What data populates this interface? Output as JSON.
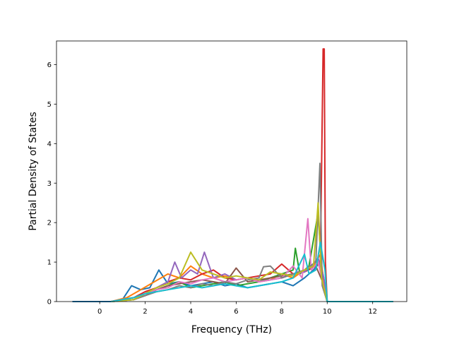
{
  "chart_data": {
    "type": "line",
    "title": "",
    "xlabel": "Frequency (THz)",
    "ylabel": "Partial Density of States",
    "xlim": [
      -1.9,
      13.5
    ],
    "ylim": [
      0,
      6.6
    ],
    "x_ticks": [
      0,
      2,
      4,
      6,
      8,
      10,
      12
    ],
    "x_tick_labels": [
      "0",
      "2",
      "4",
      "6",
      "8",
      "10",
      "12"
    ],
    "y_ticks": [
      0,
      1,
      2,
      3,
      4,
      5,
      6
    ],
    "y_tick_labels": [
      "0",
      "1",
      "2",
      "3",
      "4",
      "5",
      "6"
    ],
    "grid": false,
    "legend": "none",
    "colors": [
      "#1f77b4",
      "#ff7f0e",
      "#2ca02c",
      "#d62728",
      "#9467bd",
      "#8c564b",
      "#e377c2",
      "#7f7f7f",
      "#bcbd22",
      "#17becf"
    ],
    "series": [
      {
        "color": "#1f77b4",
        "x": [
          -1.2,
          0.5,
          1.0,
          1.4,
          1.8,
          2.2,
          2.6,
          3.0,
          3.5,
          4.0,
          4.5,
          5.0,
          5.5,
          6.0,
          6.5,
          7.0,
          7.5,
          8.0,
          8.5,
          9.0,
          9.4,
          9.7,
          9.85,
          10.0,
          12.9
        ],
        "y": [
          0,
          0,
          0.05,
          0.4,
          0.3,
          0.35,
          0.8,
          0.45,
          0.5,
          0.4,
          0.45,
          0.5,
          0.4,
          0.45,
          0.35,
          0.4,
          0.45,
          0.5,
          0.4,
          0.6,
          0.8,
          1.0,
          0.6,
          0,
          0
        ]
      },
      {
        "color": "#ff7f0e",
        "x": [
          0.5,
          1.2,
          1.8,
          2.4,
          3.0,
          3.5,
          4.0,
          4.5,
          5.0,
          5.5,
          6.0,
          6.5,
          7.0,
          7.5,
          8.0,
          8.5,
          9.0,
          9.4,
          9.7,
          9.85,
          10.0
        ],
        "y": [
          0,
          0.1,
          0.3,
          0.5,
          0.7,
          0.6,
          0.9,
          0.7,
          0.6,
          0.65,
          0.55,
          0.6,
          0.5,
          0.55,
          0.7,
          0.6,
          0.8,
          0.9,
          1.2,
          0.5,
          0
        ]
      },
      {
        "color": "#2ca02c",
        "x": [
          0.5,
          1.5,
          2.0,
          2.5,
          3.0,
          3.5,
          4.0,
          4.5,
          5.0,
          5.5,
          6.0,
          6.5,
          7.0,
          7.5,
          8.0,
          8.5,
          8.6,
          8.8,
          9.2,
          9.6,
          9.8,
          10.0
        ],
        "y": [
          0,
          0.05,
          0.2,
          0.3,
          0.4,
          0.5,
          0.35,
          0.4,
          0.45,
          0.5,
          0.4,
          0.45,
          0.5,
          0.6,
          0.7,
          0.8,
          1.35,
          0.7,
          0.9,
          2.25,
          0.4,
          0
        ]
      },
      {
        "color": "#d62728",
        "x": [
          0.5,
          1.5,
          2.0,
          2.5,
          3.0,
          3.5,
          4.0,
          4.5,
          5.0,
          5.5,
          6.0,
          6.5,
          7.0,
          7.5,
          8.0,
          8.5,
          9.0,
          9.5,
          9.7,
          9.82,
          9.87,
          9.92,
          10.0,
          12.9
        ],
        "y": [
          0,
          0.1,
          0.25,
          0.35,
          0.5,
          0.6,
          0.55,
          0.7,
          0.8,
          0.6,
          0.55,
          0.6,
          0.65,
          0.7,
          0.95,
          0.7,
          0.75,
          0.9,
          1.0,
          6.4,
          6.4,
          1.0,
          0,
          0
        ]
      },
      {
        "color": "#9467bd",
        "x": [
          0.5,
          1.5,
          2.0,
          2.5,
          3.0,
          3.3,
          3.6,
          4.0,
          4.3,
          4.6,
          5.0,
          5.5,
          6.0,
          6.5,
          7.0,
          7.5,
          8.0,
          8.5,
          9.0,
          9.3,
          9.6,
          9.85,
          10.0
        ],
        "y": [
          0,
          0.1,
          0.2,
          0.35,
          0.5,
          1.0,
          0.6,
          0.8,
          0.7,
          1.25,
          0.6,
          0.7,
          0.55,
          0.6,
          0.5,
          0.55,
          0.6,
          0.7,
          0.75,
          0.9,
          1.1,
          0.6,
          0
        ]
      },
      {
        "color": "#8c564b",
        "x": [
          0.5,
          1.5,
          2.0,
          2.5,
          3.0,
          3.5,
          4.0,
          4.5,
          5.0,
          5.5,
          6.0,
          6.5,
          7.0,
          7.5,
          8.0,
          8.5,
          9.0,
          9.5,
          9.8,
          10.0
        ],
        "y": [
          0,
          0.05,
          0.15,
          0.3,
          0.4,
          0.45,
          0.5,
          0.55,
          0.5,
          0.45,
          0.85,
          0.5,
          0.55,
          0.6,
          0.65,
          0.7,
          0.8,
          0.9,
          0.5,
          0
        ]
      },
      {
        "color": "#e377c2",
        "x": [
          0.5,
          1.5,
          2.0,
          2.5,
          3.0,
          3.5,
          4.0,
          4.5,
          5.0,
          5.5,
          6.0,
          6.5,
          7.0,
          7.5,
          8.0,
          8.5,
          8.9,
          9.15,
          9.3,
          9.6,
          9.8,
          10.0
        ],
        "y": [
          0,
          0.05,
          0.2,
          0.3,
          0.35,
          0.5,
          0.45,
          0.55,
          0.6,
          0.5,
          0.55,
          0.6,
          0.5,
          0.55,
          0.6,
          0.9,
          0.6,
          2.1,
          0.8,
          1.0,
          0.5,
          0
        ]
      },
      {
        "color": "#7f7f7f",
        "x": [
          0.5,
          1.5,
          2.0,
          2.5,
          3.0,
          3.5,
          4.0,
          4.5,
          5.0,
          5.5,
          6.0,
          6.5,
          7.0,
          7.2,
          7.5,
          8.0,
          8.5,
          9.0,
          9.5,
          9.68,
          9.78,
          10.0
        ],
        "y": [
          0,
          0.05,
          0.15,
          0.25,
          0.3,
          0.4,
          0.35,
          0.45,
          0.4,
          0.5,
          0.45,
          0.55,
          0.6,
          0.88,
          0.9,
          0.6,
          0.7,
          0.8,
          1.0,
          3.5,
          0.4,
          0
        ]
      },
      {
        "color": "#bcbd22",
        "x": [
          0.5,
          1.5,
          2.0,
          2.5,
          3.0,
          3.5,
          4.0,
          4.5,
          5.0,
          5.5,
          6.0,
          6.5,
          7.0,
          7.5,
          8.0,
          8.5,
          9.0,
          9.4,
          9.6,
          9.75,
          10.0
        ],
        "y": [
          0,
          0.05,
          0.2,
          0.35,
          0.45,
          0.6,
          1.25,
          0.8,
          0.7,
          0.6,
          0.65,
          0.6,
          0.55,
          0.75,
          0.7,
          0.65,
          0.8,
          0.9,
          2.5,
          0.6,
          0
        ]
      },
      {
        "color": "#17becf",
        "x": [
          0.5,
          1.5,
          2.0,
          2.5,
          3.0,
          3.5,
          4.0,
          4.5,
          5.0,
          5.5,
          6.0,
          6.5,
          7.0,
          7.5,
          8.0,
          8.5,
          9.0,
          9.2,
          9.5,
          9.7,
          9.9,
          10.0,
          12.9
        ],
        "y": [
          0,
          0.1,
          0.2,
          0.25,
          0.3,
          0.35,
          0.4,
          0.35,
          0.4,
          0.45,
          0.4,
          0.35,
          0.4,
          0.45,
          0.5,
          0.6,
          1.2,
          0.7,
          0.8,
          1.5,
          0.8,
          0,
          0
        ]
      }
    ]
  }
}
